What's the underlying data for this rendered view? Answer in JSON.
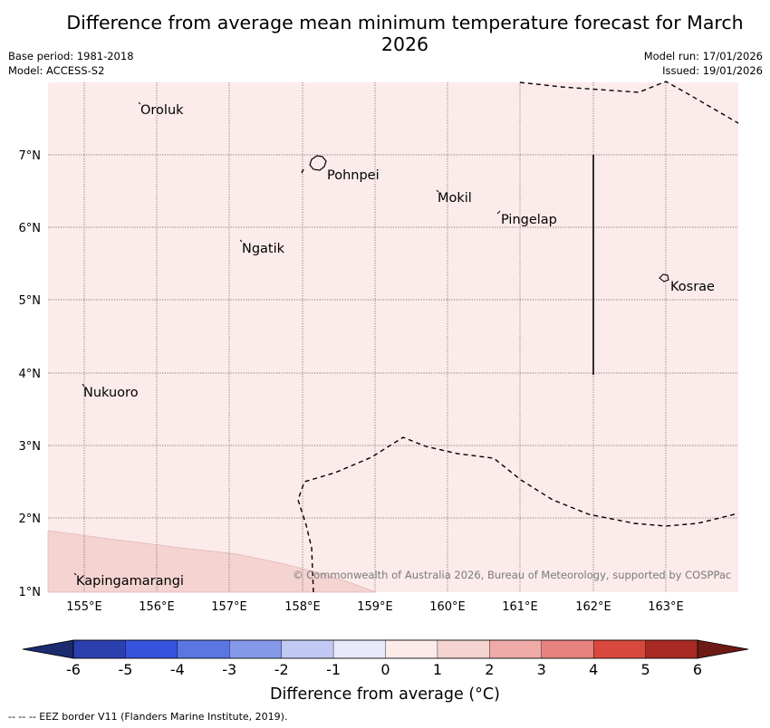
{
  "title": "Difference from average mean minimum temperature forecast for March 2026",
  "meta": {
    "base_period": "Base period: 1981-2018",
    "model": "Model: ACCESS-S2",
    "model_run": "Model run: 17/01/2026",
    "issued": "Issued: 19/01/2026"
  },
  "map": {
    "lat_labels": [
      "1°N",
      "2°N",
      "3°N",
      "4°N",
      "5°N",
      "6°N",
      "7°N"
    ],
    "lon_labels": [
      "155°E",
      "156°E",
      "157°E",
      "158°E",
      "159°E",
      "160°E",
      "161°E",
      "162°E",
      "163°E"
    ],
    "places": [
      "Oroluk",
      "Pohnpei",
      "Mokil",
      "Pingelap",
      "Ngatik",
      "Kosrae",
      "Nukuoro",
      "Kapingamarangi"
    ],
    "copyright": "© Commonwealth of Australia 2026, Bureau of Meteorology, supported by COSPPac"
  },
  "colorbar": {
    "ticks": [
      "-6",
      "-5",
      "-4",
      "-3",
      "-2",
      "-1",
      "0",
      "1",
      "2",
      "3",
      "4",
      "5",
      "6"
    ],
    "colors": [
      "#2b3fae",
      "#3553dc",
      "#5a76e3",
      "#8599ea",
      "#c2c9f4",
      "#e8eafb",
      "#fcebe9",
      "#f4d3d1",
      "#eeaba7",
      "#e6837e",
      "#d9483d",
      "#a92a24"
    ],
    "under_color": "#1c2a6e",
    "over_color": "#6d1a17",
    "label": "Difference from average (°C)"
  },
  "colors": {
    "background_field": "#fbebea",
    "lower_field": "#f4d3d1"
  },
  "footnote": "--  --  -- EEZ border V11 (Flanders Marine Institute, 2019)."
}
